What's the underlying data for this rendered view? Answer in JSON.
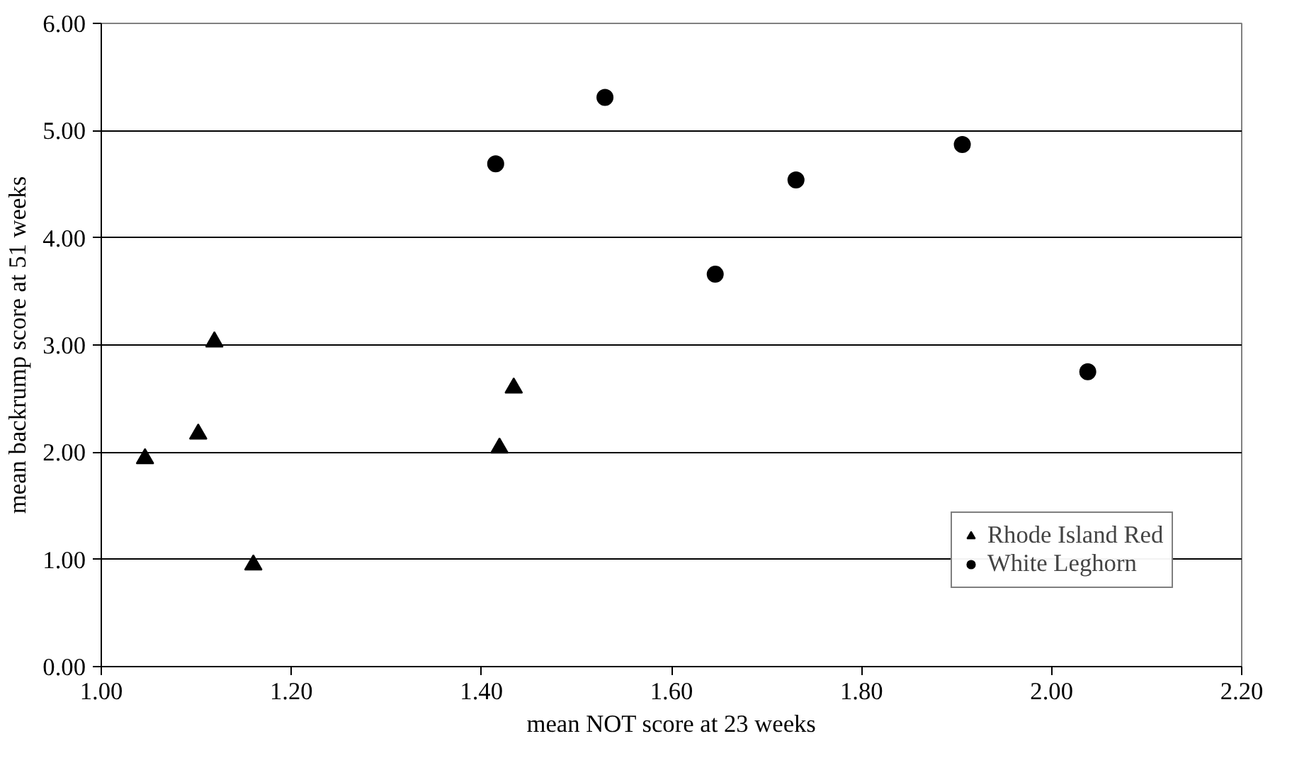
{
  "chart_data": {
    "type": "scatter",
    "xlabel": "mean NOT score at 23 weeks",
    "ylabel": "mean backrump score at 51 weeks",
    "xlim": [
      1.0,
      2.2
    ],
    "xticks": [
      {
        "value": 1.0,
        "label": "1.00"
      },
      {
        "value": 1.2,
        "label": "1.20"
      },
      {
        "value": 1.4,
        "label": "1.40"
      },
      {
        "value": 1.6,
        "label": "1.60"
      },
      {
        "value": 1.8,
        "label": "1.80"
      },
      {
        "value": 2.0,
        "label": "2.00"
      },
      {
        "value": 2.2,
        "label": "2.20"
      }
    ],
    "ylim": [
      0,
      6
    ],
    "yticks": [
      {
        "value": 0,
        "label": "0.00"
      },
      {
        "value": 1,
        "label": "1.00"
      },
      {
        "value": 2,
        "label": "2.00"
      },
      {
        "value": 3,
        "label": "3.00"
      },
      {
        "value": 4,
        "label": "4.00"
      },
      {
        "value": 5,
        "label": "5.00"
      },
      {
        "value": 6,
        "label": "6.00"
      }
    ],
    "grid": "y",
    "legend": "bottom right",
    "series": [
      {
        "name": "Rhode Island Red",
        "color": "#000000",
        "marker": "triangle",
        "x": [
          1.046,
          1.102,
          1.119,
          1.16,
          1.419,
          1.434
        ],
        "values": [
          1.94,
          2.17,
          3.03,
          0.95,
          2.04,
          2.6
        ]
      },
      {
        "name": "White Leghorn",
        "color": "#000000",
        "marker": "circle",
        "x": [
          1.415,
          1.53,
          1.646,
          1.731,
          1.906,
          2.038
        ],
        "values": [
          4.69,
          5.31,
          3.66,
          4.54,
          4.87,
          2.75
        ]
      }
    ]
  }
}
